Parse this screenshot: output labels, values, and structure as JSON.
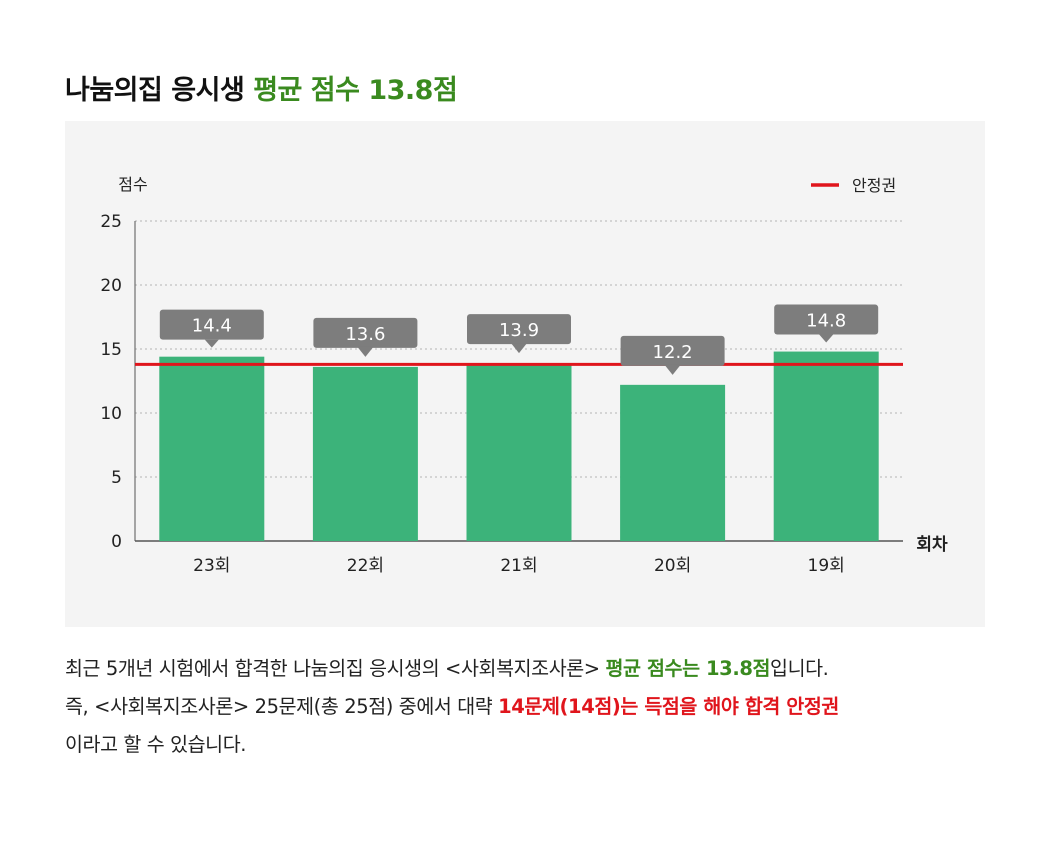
{
  "title": {
    "main": "나눔의집 응시생",
    "highlight": "평균 점수 13.8점"
  },
  "chart_data": {
    "type": "bar",
    "ylabel": "점수",
    "xlabel": "회차",
    "categories": [
      "23회",
      "22회",
      "21회",
      "20회",
      "19회"
    ],
    "values": [
      14.4,
      13.6,
      13.9,
      12.2,
      14.8
    ],
    "value_labels": [
      "14.4",
      "13.6",
      "13.9",
      "12.2",
      "14.8"
    ],
    "ylim": [
      0,
      25
    ],
    "yticks": [
      0,
      5,
      10,
      15,
      20,
      25
    ],
    "ytick_labels": [
      "0",
      "5",
      "10",
      "15",
      "20",
      "25"
    ],
    "grid": true,
    "legend": {
      "position": "top-right",
      "entries": [
        "안정권"
      ]
    },
    "reference_line": {
      "name": "안정권",
      "value": 13.8
    },
    "colors": {
      "bar": "#3cb37a",
      "reference": "#e0151c",
      "label_box": "#7d7d7d"
    }
  },
  "description": {
    "line1": {
      "text": "최근 5개년 시험에서 합격한 나눔의집 응시생의 <사회복지조사론> ",
      "green": "평균 점수는 13.8점",
      "tail": "입니다."
    },
    "line2": {
      "text": "즉, <사회복지조사론> 25문제(총 25점) 중에서 대략 ",
      "red": "14문제(14점)는 득점을 해야 합격 안정권"
    },
    "line3": {
      "text": "이라고 할 수 있습니다."
    }
  }
}
